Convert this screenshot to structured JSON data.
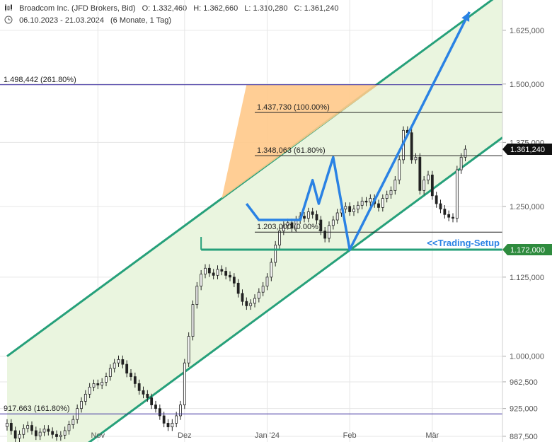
{
  "header": {
    "instrument": "Broadcom Inc. (JFD Brokers, Bid)",
    "open": "O: 1.332,460",
    "high": "H: 1.362,660",
    "low": "L: 1.310,280",
    "close": "C: 1.361,240",
    "range": "06.10.2023 - 21.03.2024",
    "period": "(6 Monate, 1 Tag)"
  },
  "chart_data": {
    "type": "candlestick",
    "y_scale": "log",
    "ylim": [
      880,
      1700
    ],
    "y_ticks": [
      {
        "value": 887.5,
        "label": "887,500"
      },
      {
        "value": 925,
        "label": "925,000"
      },
      {
        "value": 962.5,
        "label": "962,500"
      },
      {
        "value": 1000,
        "label": "1.000,000"
      },
      {
        "value": 1125,
        "label": "1.125,000"
      },
      {
        "value": 1250,
        "label": "1.250,000"
      },
      {
        "value": 1375,
        "label": "1.375,000"
      },
      {
        "value": 1500,
        "label": "1.500,000"
      },
      {
        "value": 1625,
        "label": "1.625,000"
      }
    ],
    "x_ticks": [
      {
        "index": 22,
        "label": "Nov"
      },
      {
        "index": 43,
        "label": "Dez"
      },
      {
        "index": 63,
        "label": "Jan '24"
      },
      {
        "index": 83,
        "label": "Feb"
      },
      {
        "index": 103,
        "label": "Mär"
      }
    ],
    "x_count": 120,
    "closes": [
      905,
      895,
      885,
      890,
      898,
      902,
      895,
      888,
      893,
      897,
      894,
      890,
      887,
      889,
      895,
      903,
      910,
      925,
      935,
      945,
      955,
      960,
      958,
      962,
      970,
      982,
      990,
      995,
      988,
      975,
      970,
      960,
      950,
      945,
      940,
      930,
      925,
      915,
      905,
      900,
      905,
      915,
      930,
      990,
      1030,
      1080,
      1110,
      1130,
      1140,
      1132,
      1128,
      1138,
      1135,
      1128,
      1125,
      1115,
      1098,
      1085,
      1078,
      1082,
      1090,
      1100,
      1110,
      1125,
      1150,
      1180,
      1205,
      1215,
      1220,
      1210,
      1225,
      1232,
      1228,
      1240,
      1235,
      1225,
      1205,
      1192,
      1215,
      1225,
      1238,
      1245,
      1250,
      1240,
      1245,
      1252,
      1260,
      1258,
      1265,
      1255,
      1248,
      1265,
      1272,
      1280,
      1300,
      1340,
      1400,
      1395,
      1340,
      1345,
      1280,
      1300,
      1310,
      1270,
      1255,
      1245,
      1235,
      1230,
      1228,
      1320,
      1345,
      1361
    ],
    "last_price": {
      "value": 1361.24,
      "label": "1.361,240"
    },
    "setup_level": {
      "value": 1172,
      "label": "1.172,000",
      "annotation": "<<Trading-Setup"
    },
    "fib_levels": [
      {
        "value": 1498.442,
        "label": "1.498,442 (261.80%)"
      },
      {
        "value": 1437.73,
        "label": "1.437,730 (100.00%)"
      },
      {
        "value": 1348.063,
        "label": "1.348,063 (61.80%)"
      },
      {
        "value": 1203.0,
        "label": "1.203,000 (0.00%)"
      },
      {
        "value": 917.663,
        "label": "917.663 (161.80%)"
      }
    ],
    "channel": {
      "upper": [
        [
          0,
          1000
        ],
        [
          120,
          1720
        ]
      ],
      "lower": [
        [
          20,
          880
        ],
        [
          120,
          1385
        ]
      ]
    },
    "projection_path": [
      [
        58,
        1255
      ],
      [
        61,
        1225
      ],
      [
        71,
        1225
      ],
      [
        74,
        1300
      ],
      [
        75.5,
        1255
      ],
      [
        79,
        1345
      ],
      [
        83,
        1172
      ],
      [
        112,
        1670
      ]
    ],
    "colors": {
      "bull_candle": "#ffffff",
      "bear_candle": "#222222",
      "channel_line": "#26a07a",
      "channel_fill": "#eaf5df",
      "zone_fill": "#ffc98a",
      "projection": "#2a82e4",
      "fib_purple": "#3b2d9e",
      "last_badge": "#111111",
      "setup_badge": "#2e8b3e"
    }
  }
}
